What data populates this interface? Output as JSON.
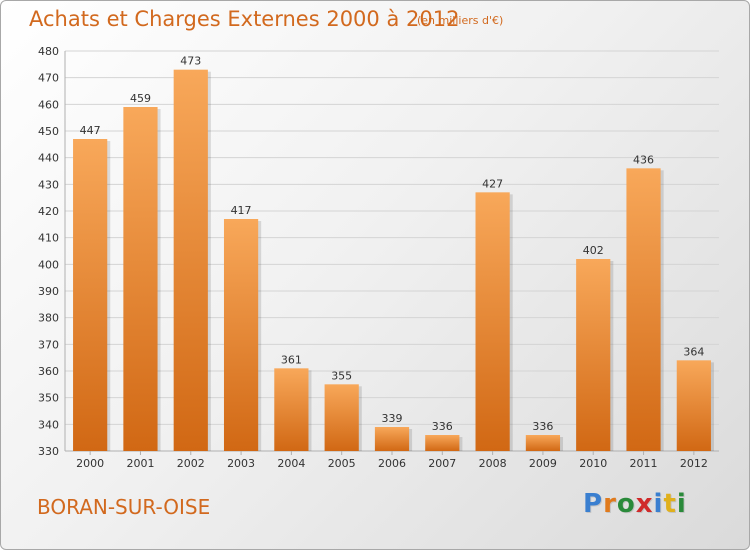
{
  "title": "Achats et Charges Externes 2000 à 2012",
  "unit_note": "(en milliers d'€)",
  "city": "BORAN-SUR-OISE",
  "logo": {
    "text": "Proxiti",
    "letter_colors": [
      "#3a7fd0",
      "#e07a1c",
      "#2a8a3a",
      "#d02a2a",
      "#3a7fd0",
      "#e0b01c",
      "#2a8a3a"
    ]
  },
  "colors": {
    "bar_light": "#f8a85a",
    "bar_dark": "#d16814",
    "text_orange": "#d2691e",
    "grid": "#d4d4d4"
  },
  "chart_data": {
    "type": "bar",
    "categories": [
      "2000",
      "2001",
      "2002",
      "2003",
      "2004",
      "2005",
      "2006",
      "2007",
      "2008",
      "2009",
      "2010",
      "2011",
      "2012"
    ],
    "values": [
      447,
      459,
      473,
      417,
      361,
      355,
      339,
      336,
      427,
      336,
      402,
      436,
      364
    ],
    "ylim": [
      330,
      480
    ],
    "yticks": [
      330,
      340,
      350,
      360,
      370,
      380,
      390,
      400,
      410,
      420,
      430,
      440,
      450,
      460,
      470,
      480
    ],
    "data_labels": true,
    "grid": true
  }
}
